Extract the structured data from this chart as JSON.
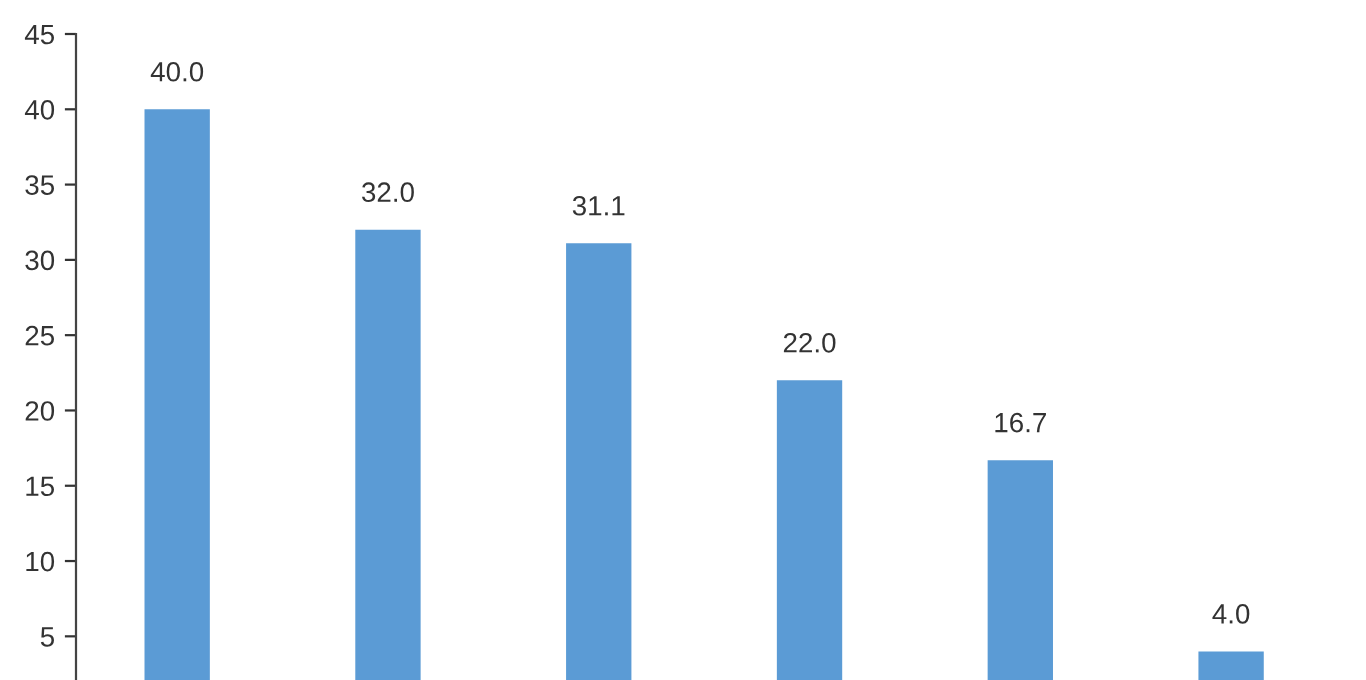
{
  "chart_data": {
    "type": "bar",
    "categories": [
      null,
      null,
      null,
      null,
      null,
      null
    ],
    "values": [
      40.0,
      32.0,
      31.1,
      22.0,
      16.7,
      4.0
    ],
    "color": "#5b9bd5",
    "ylim": [
      2.1,
      45
    ],
    "yticks": [
      5,
      10,
      15,
      20,
      25,
      30,
      35,
      40,
      45
    ],
    "value_labels": [
      "40.0",
      "32.0",
      "31.1",
      "22.0",
      "16.7",
      "4.0"
    ],
    "grid": false,
    "tick_labels": "y"
  }
}
